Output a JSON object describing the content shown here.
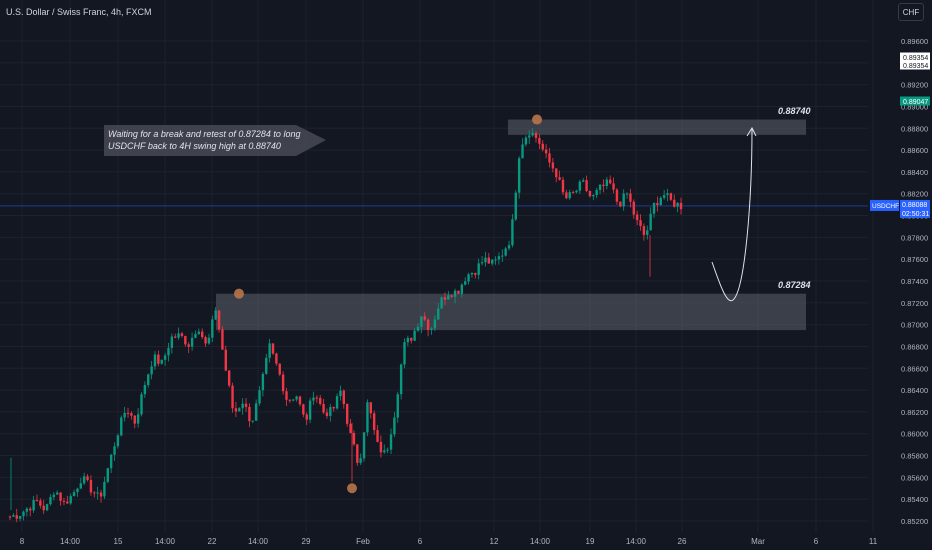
{
  "title": "U.S. Dollar / Swiss Franc, 4h, FXCM",
  "currency_button": "CHF",
  "colors": {
    "up": "#089981",
    "down": "#f23645",
    "bg": "#131722",
    "grid": "#1e222d",
    "zone": "#5d6069",
    "marker": "#b8744a",
    "price_line": "#2962ff"
  },
  "annotation": {
    "line1": "Waiting for a break and retest of 0.87284 to long",
    "line2": "USDCHF back to 4H swing high at 0.88740"
  },
  "levels": {
    "high_label": "0.88740",
    "retest_label": "0.87284"
  },
  "price_tags": [
    {
      "text": "0.89354",
      "style": "white"
    },
    {
      "text": "0.89354",
      "style": "white"
    },
    {
      "text": "0.89047",
      "style": "green"
    }
  ],
  "symbol_tag": {
    "symbol": "USDCHF",
    "price": "0.88088",
    "countdown": "02:50:31"
  },
  "chart_data": {
    "type": "candlestick",
    "title": "U.S. Dollar / Swiss Franc, 4h, FXCM",
    "y_ticks": [
      "0.89600",
      "0.89400",
      "0.89200",
      "0.89000",
      "0.88800",
      "0.88600",
      "0.88400",
      "0.88200",
      "0.88000",
      "0.87800",
      "0.87600",
      "0.87400",
      "0.87200",
      "0.87000",
      "0.86800",
      "0.86600",
      "0.86400",
      "0.86200",
      "0.86000",
      "0.85800",
      "0.85600",
      "0.85400",
      "0.85200"
    ],
    "ylim": [
      0.8517,
      0.8978
    ],
    "x_ticks": [
      "8",
      "14:00",
      "15",
      "14:00",
      "22",
      "14:00",
      "29",
      "Feb",
      "6",
      "12",
      "14:00",
      "19",
      "14:00",
      "26",
      "Mar",
      "6",
      "11"
    ],
    "zones": [
      {
        "label": "0.88740",
        "from": 0.8874,
        "to": 0.8888
      },
      {
        "label": "0.87284",
        "from": 0.8695,
        "to": 0.87284
      }
    ],
    "swing_markers": [
      "high 0.88880",
      "high 0.87284",
      "low 0.85500"
    ],
    "last_price": 0.88088,
    "waypoints": [
      0.8524,
      0.8526,
      0.8532,
      0.8538,
      0.853,
      0.855,
      0.8536,
      0.8544,
      0.856,
      0.855,
      0.854,
      0.857,
      0.86,
      0.8624,
      0.861,
      0.8644,
      0.867,
      0.8664,
      0.8688,
      0.869,
      0.8682,
      0.87,
      0.8678,
      0.8715,
      0.8664,
      0.8618,
      0.863,
      0.861,
      0.864,
      0.868,
      0.8658,
      0.863,
      0.8636,
      0.861,
      0.864,
      0.862,
      0.862,
      0.864,
      0.86,
      0.857,
      0.863,
      0.859,
      0.858,
      0.862,
      0.868,
      0.869,
      0.871,
      0.8695,
      0.872,
      0.873,
      0.873,
      0.8745,
      0.875,
      0.876,
      0.8755,
      0.8765,
      0.878,
      0.8864,
      0.8878,
      0.887,
      0.8852,
      0.884,
      0.8815,
      0.882,
      0.883,
      0.8815,
      0.8825,
      0.883,
      0.881,
      0.882,
      0.8795,
      0.878,
      0.881,
      0.882,
      0.8812,
      0.88088
    ]
  }
}
